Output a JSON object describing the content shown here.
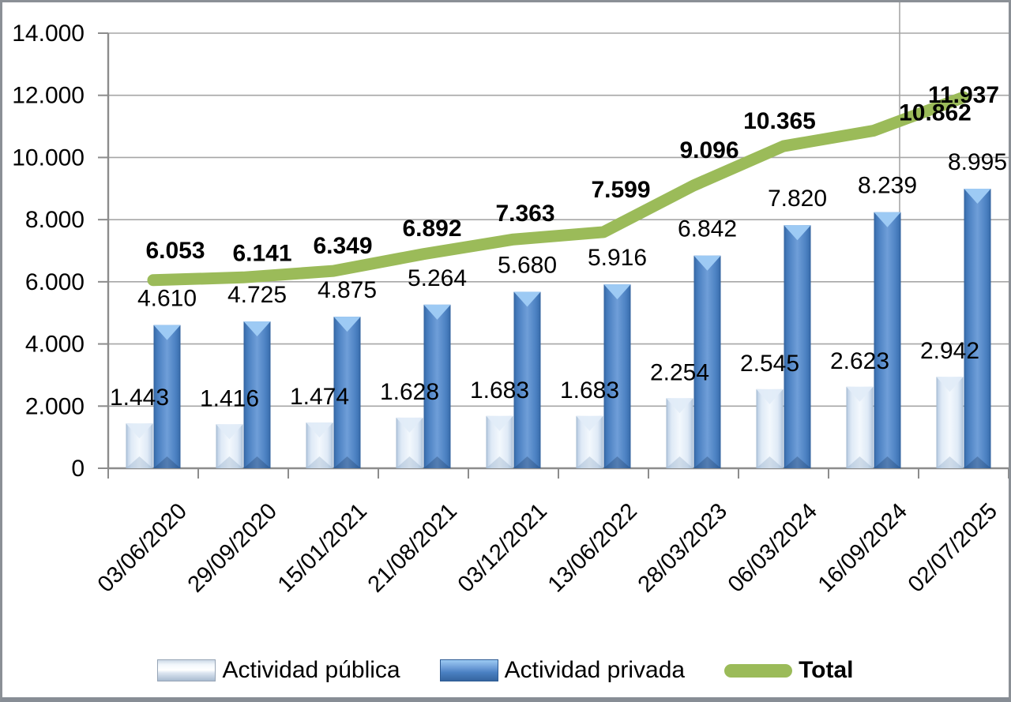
{
  "chart_data": {
    "type": "bar",
    "subtype": "grouped-bars-with-line",
    "title": "",
    "xlabel": "",
    "ylabel": "",
    "categories": [
      "03/06/2020",
      "29/09/2020",
      "15/01/2021",
      "21/08/2021",
      "03/12/2021",
      "13/06/2022",
      "28/03/2023",
      "06/03/2024",
      "16/09/2024",
      "02/07/2025"
    ],
    "series": [
      {
        "name": "Actividad pública",
        "type": "bar",
        "values": [
          1443,
          1416,
          1474,
          1628,
          1683,
          1683,
          2254,
          2545,
          2623,
          2942
        ],
        "labels": [
          "1.443",
          "1.416",
          "1.474",
          "1.628",
          "1.683",
          "1.683",
          "2.254",
          "2.545",
          "2.623",
          "2.942"
        ],
        "color": "#dce6f2"
      },
      {
        "name": "Actividad privada",
        "type": "bar",
        "values": [
          4610,
          4725,
          4875,
          5264,
          5680,
          5916,
          6842,
          7820,
          8239,
          8995
        ],
        "labels": [
          "4.610",
          "4.725",
          "4.875",
          "5.264",
          "5.680",
          "5.916",
          "6.842",
          "7.820",
          "8.239",
          "8.995"
        ],
        "color": "#4f81bd"
      },
      {
        "name": "Total",
        "type": "line",
        "values": [
          6053,
          6141,
          6349,
          6892,
          7363,
          7599,
          9096,
          10365,
          10862,
          11937
        ],
        "labels": [
          "6.053",
          "6.141",
          "6.349",
          "6.892",
          "7.363",
          "7.599",
          "9.096",
          "10.365",
          "10.862",
          "11.937"
        ],
        "labels_bold": true,
        "color": "#9bbb59"
      }
    ],
    "ylim": [
      0,
      14000
    ],
    "ytick_step": 2000,
    "ytick_labels": [
      "0",
      "2.000",
      "4.000",
      "6.000",
      "8.000",
      "10.000",
      "12.000",
      "14.000"
    ],
    "number_format": "thousands-dot",
    "grid": "horizontal",
    "data_labels": true,
    "legend_position": "bottom",
    "colors": {
      "gridline": "#a6a6a6",
      "axis": "#8c8c8c",
      "text": "#000000",
      "bar_public_edge": "#9fb6ce",
      "bar_public_center": "#f3f8fd",
      "bar_private_edge": "#2f5f9b",
      "bar_private_center": "#6f9ed8",
      "line_total": "#9bbb59"
    }
  },
  "legend": {
    "items": [
      {
        "label": "Actividad pública"
      },
      {
        "label": "Actividad privada"
      },
      {
        "label": "Total"
      }
    ]
  }
}
